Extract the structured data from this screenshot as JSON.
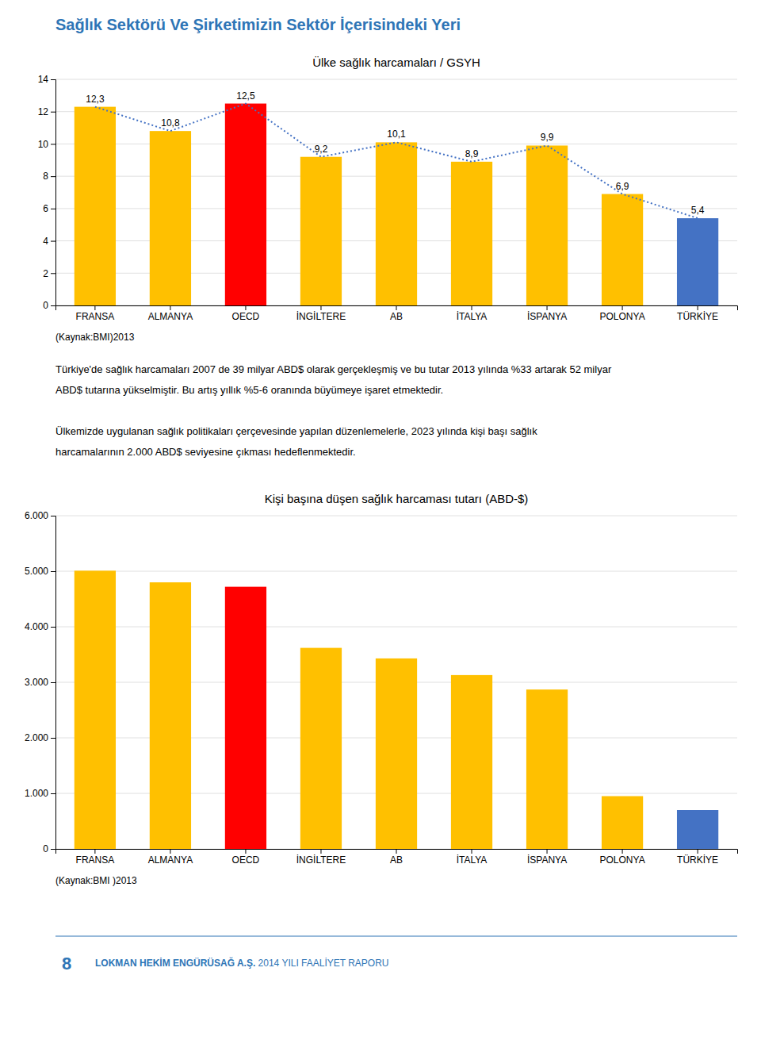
{
  "page": {
    "title": "Sağlık Sektörü Ve Şirketimizin Sektör İçerisindeki Yeri",
    "title_color": "#2E75B6",
    "paragraphs": [
      "Türkiye'de sağlık harcamaları 2007 de 39 milyar ABD$ olarak gerçekleşmiş ve bu tutar 2013 yılında %33 artarak 52 milyar\nABD$ tutarına yükselmiştir. Bu artış yıllık %5-6 oranında büyümeye işaret etmektedir.",
      "Ülkemizde uygulanan sağlık politikaları çerçevesinde yapılan düzenlemelerle, 2023 yılında kişi başı sağlık\nharcamalarının 2.000 ABD$ seviyesine çıkması hedeflenmektedir."
    ],
    "footer": {
      "number": "8",
      "bold": "LOKMAN HEKİM ENGÜRÜSAĞ A.Ş.",
      "normal": " 2014 YILI FAALİYET RAPORU",
      "color": "#2E75B6"
    }
  },
  "chart_data": [
    {
      "type": "bar",
      "title": "Ülke sağlık harcamaları / GSYH",
      "categories": [
        "FRANSA",
        "ALMANYA",
        "OECD",
        "İNGİLTERE",
        "AB",
        "İTALYA",
        "İSPANYA",
        "POLONYA",
        "TÜRKİYE"
      ],
      "series": [
        {
          "type": "bar",
          "values": [
            12.3,
            10.8,
            12.5,
            9.2,
            10.1,
            8.9,
            9.9,
            6.9,
            5.4
          ],
          "value_labels": [
            "12,3",
            "10,8",
            "12,5",
            "9,2",
            "10,1",
            "8,9",
            "9,9",
            "6,9",
            "5,4"
          ],
          "colors": [
            "#FFC000",
            "#FFC000",
            "#FF0000",
            "#FFC000",
            "#FFC000",
            "#FFC000",
            "#FFC000",
            "#FFC000",
            "#4472C4"
          ]
        },
        {
          "type": "line",
          "line_style": "dotted",
          "color": "#4472C4",
          "values": [
            12.3,
            10.8,
            12.5,
            9.2,
            10.1,
            8.9,
            9.9,
            6.9,
            5.4
          ]
        }
      ],
      "ylim": [
        0,
        14
      ],
      "yticks": [
        0,
        2,
        4,
        6,
        8,
        10,
        12,
        14
      ],
      "grid": true,
      "data_labels": true,
      "annotations": [
        "(Kaynak:BMI)2013"
      ]
    },
    {
      "type": "bar",
      "title": "Kişi başına düşen sağlık harcaması tutarı (ABD-$)",
      "categories": [
        "FRANSA",
        "ALMANYA",
        "OECD",
        "İNGİLTERE",
        "AB",
        "İTALYA",
        "İSPANYA",
        "POLONYA",
        "TÜRKİYE"
      ],
      "values": [
        5010,
        4800,
        4720,
        3620,
        3430,
        3130,
        2870,
        950,
        700
      ],
      "colors": [
        "#FFC000",
        "#FFC000",
        "#FF0000",
        "#FFC000",
        "#FFC000",
        "#FFC000",
        "#FFC000",
        "#FFC000",
        "#4472C4"
      ],
      "ylim": [
        0,
        6000
      ],
      "yticks": [
        0,
        {
          "value": 1000,
          "label": "1.000"
        },
        {
          "value": 2000,
          "label": "2.000"
        },
        {
          "value": 3000,
          "label": "3.000"
        },
        {
          "value": 4000,
          "label": "4.000"
        },
        {
          "value": 5000,
          "label": "5.000"
        },
        {
          "value": 6000,
          "label": "6.000"
        }
      ],
      "grid": true,
      "annotations": [
        "(Kaynak:BMI )2013"
      ]
    }
  ]
}
